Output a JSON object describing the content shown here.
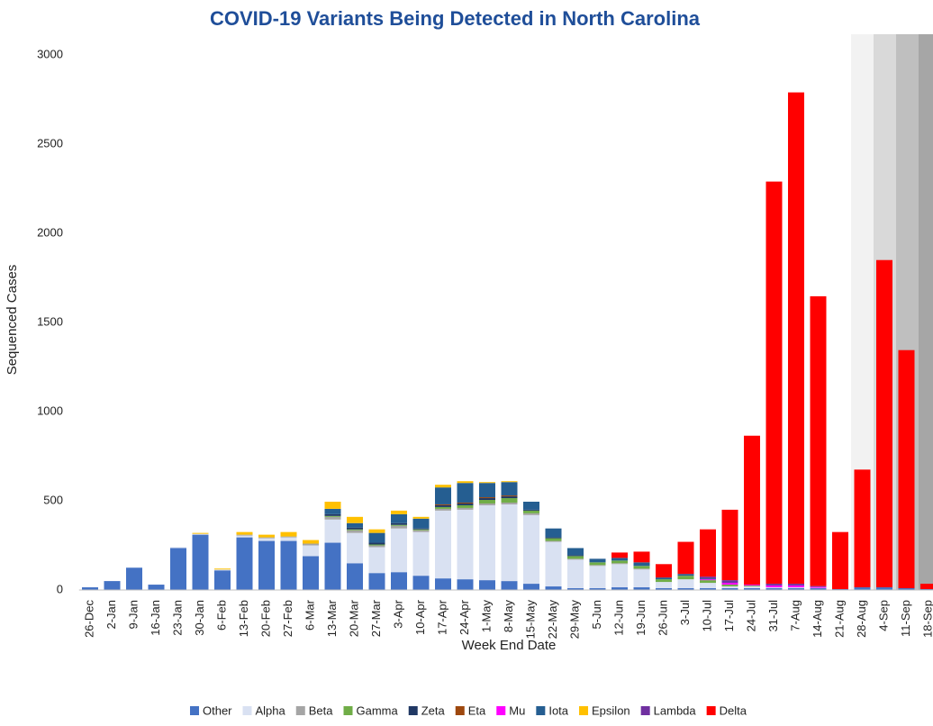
{
  "chart_data": {
    "type": "stacked_bar",
    "title": "COVID-19 Variants Being Detected in North Carolina",
    "x_label": "Week End Date",
    "y_label": "Sequenced Cases",
    "categories": [
      "26-Dec",
      "2-Jan",
      "9-Jan",
      "16-Jan",
      "23-Jan",
      "30-Jan",
      "6-Feb",
      "13-Feb",
      "20-Feb",
      "27-Feb",
      "6-Mar",
      "13-Mar",
      "20-Mar",
      "27-Mar",
      "3-Apr",
      "10-Apr",
      "17-Apr",
      "24-Apr",
      "1-May",
      "8-May",
      "15-May",
      "22-May",
      "29-May",
      "5-Jun",
      "12-Jun",
      "19-Jun",
      "26-Jun",
      "3-Jul",
      "10-Jul",
      "17-Jul",
      "24-Jul",
      "31-Jul",
      "7-Aug",
      "14-Aug",
      "21-Aug",
      "28-Aug",
      "4-Sep",
      "11-Sep",
      "18-Sep"
    ],
    "series": [
      {
        "name": "Other",
        "color": "#4472c4",
        "values": [
          15,
          50,
          125,
          30,
          235,
          310,
          110,
          295,
          275,
          275,
          190,
          265,
          150,
          95,
          100,
          80,
          65,
          60,
          55,
          50,
          35,
          20,
          10,
          10,
          15,
          15,
          10,
          10,
          10,
          10,
          10,
          10,
          10,
          10,
          5,
          15,
          15,
          10,
          5
        ]
      },
      {
        "name": "Alpha",
        "color": "#d9e1f2",
        "values": [
          0,
          0,
          0,
          0,
          5,
          5,
          5,
          10,
          15,
          20,
          60,
          130,
          170,
          145,
          245,
          245,
          380,
          390,
          420,
          430,
          385,
          250,
          160,
          125,
          130,
          100,
          35,
          50,
          30,
          10,
          10,
          5,
          5,
          2,
          0,
          0,
          0,
          0,
          0
        ]
      },
      {
        "name": "Beta",
        "color": "#a5a5a5",
        "values": [
          0,
          0,
          0,
          0,
          0,
          0,
          0,
          5,
          5,
          5,
          10,
          15,
          15,
          10,
          15,
          10,
          10,
          10,
          10,
          10,
          10,
          5,
          5,
          5,
          5,
          5,
          0,
          0,
          0,
          0,
          0,
          0,
          0,
          0,
          0,
          0,
          0,
          0,
          0
        ]
      },
      {
        "name": "Gamma",
        "color": "#70ad47",
        "values": [
          0,
          0,
          0,
          0,
          0,
          0,
          0,
          0,
          0,
          0,
          0,
          5,
          5,
          5,
          5,
          5,
          10,
          15,
          20,
          25,
          15,
          15,
          15,
          15,
          15,
          15,
          15,
          20,
          15,
          10,
          5,
          0,
          0,
          0,
          0,
          0,
          0,
          0,
          0
        ]
      },
      {
        "name": "Zeta",
        "color": "#203864",
        "values": [
          0,
          0,
          0,
          0,
          0,
          0,
          0,
          0,
          0,
          0,
          0,
          10,
          10,
          10,
          10,
          5,
          10,
          10,
          10,
          10,
          5,
          5,
          5,
          0,
          0,
          0,
          0,
          0,
          0,
          0,
          0,
          0,
          0,
          0,
          0,
          0,
          0,
          0,
          0
        ]
      },
      {
        "name": "Eta",
        "color": "#9e480e",
        "values": [
          0,
          0,
          0,
          0,
          0,
          0,
          0,
          0,
          0,
          0,
          0,
          0,
          0,
          0,
          0,
          0,
          5,
          5,
          5,
          5,
          0,
          0,
          0,
          0,
          0,
          0,
          0,
          0,
          0,
          0,
          0,
          0,
          0,
          0,
          0,
          0,
          0,
          0,
          0
        ]
      },
      {
        "name": "Mu",
        "color": "#ff00ff",
        "values": [
          0,
          0,
          0,
          0,
          0,
          0,
          0,
          0,
          0,
          0,
          0,
          0,
          0,
          0,
          0,
          0,
          0,
          0,
          0,
          0,
          0,
          0,
          0,
          0,
          0,
          0,
          0,
          0,
          5,
          10,
          5,
          10,
          10,
          5,
          0,
          0,
          0,
          0,
          0
        ]
      },
      {
        "name": "Iota",
        "color": "#255e91",
        "values": [
          0,
          0,
          0,
          0,
          0,
          0,
          0,
          0,
          0,
          0,
          0,
          30,
          25,
          55,
          50,
          55,
          95,
          110,
          80,
          75,
          45,
          50,
          40,
          20,
          15,
          20,
          10,
          10,
          5,
          0,
          0,
          0,
          0,
          0,
          0,
          0,
          0,
          0,
          0
        ]
      },
      {
        "name": "Epsilon",
        "color": "#ffc000",
        "values": [
          0,
          0,
          0,
          0,
          0,
          5,
          5,
          15,
          15,
          25,
          20,
          40,
          35,
          20,
          20,
          10,
          15,
          10,
          5,
          5,
          0,
          0,
          0,
          0,
          0,
          0,
          0,
          0,
          0,
          0,
          0,
          0,
          0,
          0,
          0,
          0,
          0,
          0,
          0
        ]
      },
      {
        "name": "Lambda",
        "color": "#7030a0",
        "values": [
          0,
          0,
          0,
          0,
          0,
          0,
          0,
          0,
          0,
          0,
          0,
          0,
          0,
          0,
          0,
          0,
          0,
          0,
          0,
          0,
          0,
          0,
          0,
          0,
          0,
          0,
          0,
          0,
          10,
          15,
          0,
          10,
          10,
          5,
          0,
          0,
          0,
          0,
          0
        ]
      },
      {
        "name": "Delta",
        "color": "#ff0000",
        "values": [
          0,
          0,
          0,
          0,
          0,
          0,
          0,
          0,
          0,
          0,
          0,
          0,
          0,
          0,
          0,
          0,
          0,
          0,
          0,
          0,
          0,
          0,
          0,
          0,
          30,
          60,
          75,
          180,
          265,
          395,
          835,
          2255,
          2755,
          1625,
          320,
          660,
          1835,
          1335,
          30
        ]
      }
    ],
    "ylim": [
      0,
      3000
    ],
    "yticks": [
      0,
      500,
      1000,
      1500,
      2000,
      2500,
      3000
    ],
    "grid": false,
    "legend": "bottom"
  }
}
